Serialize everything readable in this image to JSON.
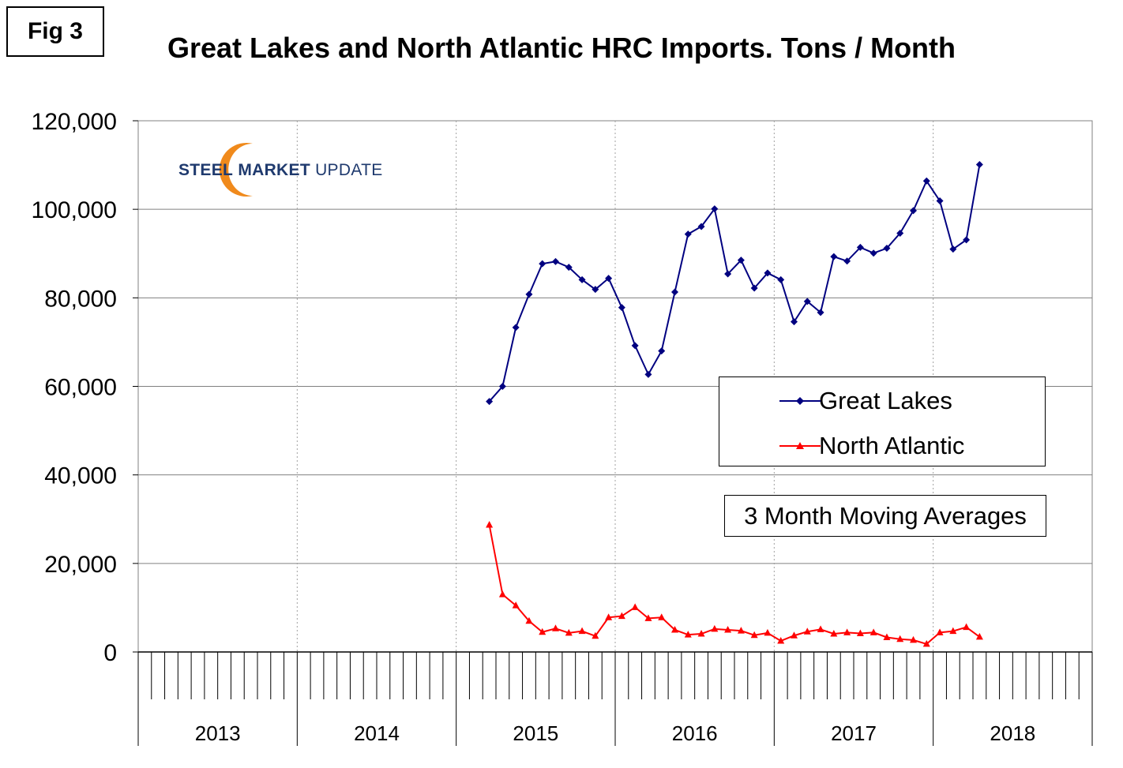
{
  "figure": {
    "label": "Fig 3"
  },
  "logo": {
    "word1": "STEEL",
    "word2": "MARKET",
    "word3": "UPDATE"
  },
  "note": {
    "text": "3 Month Moving Averages"
  },
  "colors": {
    "great_lakes": "#000080",
    "north_atlantic": "#ff0000",
    "logo_orange": "#f08a1c",
    "logo_text": "#1f3a6e"
  },
  "chart_data": {
    "type": "line",
    "title": "Great Lakes and North Atlantic HRC Imports. Tons / Month",
    "xlabel": "",
    "ylabel": "",
    "ylim": [
      0,
      120000
    ],
    "yticks": [
      0,
      20000,
      40000,
      60000,
      80000,
      100000,
      120000
    ],
    "ytick_labels": [
      "0",
      "20,000",
      "40,000",
      "60,000",
      "80,000",
      "100,000",
      "120,000"
    ],
    "x_categories": [
      "2013",
      "2014",
      "2015",
      "2016",
      "2017",
      "2018"
    ],
    "months_per_category": 12,
    "grid": {
      "horizontal": true,
      "vertical": "dotted at year boundaries"
    },
    "legend_position": "right-center",
    "series": [
      {
        "name": "Great Lakes",
        "marker": "diamond",
        "start": "2015-03",
        "values": [
          56600,
          60000,
          73300,
          80800,
          87700,
          88200,
          86900,
          84100,
          81900,
          84400,
          77800,
          69200,
          62700,
          68000,
          81300,
          94400,
          96100,
          100100,
          85400,
          88500,
          82200,
          85600,
          84100,
          74600,
          79200,
          76700,
          89300,
          88300,
          91400,
          90100,
          91200,
          94600,
          99700,
          106400,
          101900,
          91000,
          93100,
          110100
        ]
      },
      {
        "name": "North Atlantic",
        "marker": "triangle",
        "start": "2015-03",
        "values": [
          28700,
          13000,
          10500,
          7000,
          4500,
          5300,
          4300,
          4700,
          3600,
          7800,
          8100,
          10100,
          7600,
          7800,
          5000,
          3900,
          4100,
          5200,
          5000,
          4800,
          3800,
          4300,
          2500,
          3700,
          4600,
          5100,
          4100,
          4400,
          4200,
          4400,
          3300,
          2900,
          2700,
          1800,
          4400,
          4700,
          5600,
          3400
        ]
      }
    ]
  }
}
